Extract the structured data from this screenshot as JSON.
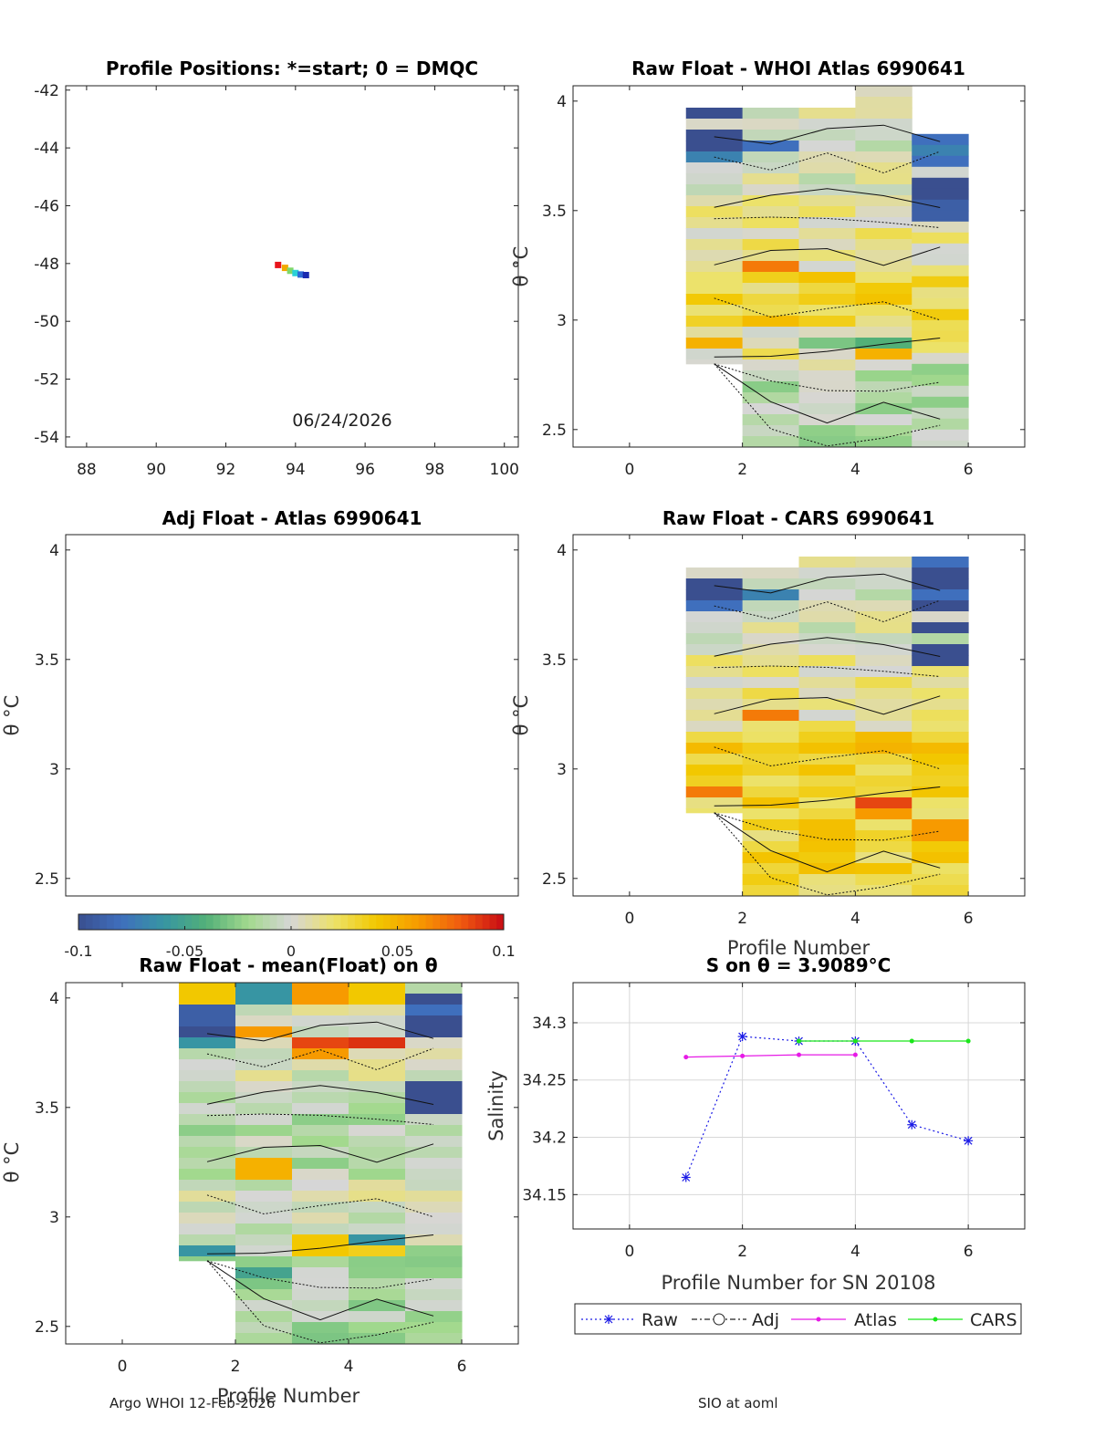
{
  "footer": {
    "left": "Argo WHOI 12-Feb-2026",
    "right": "SIO at aoml"
  },
  "colorbar": {
    "ticks": [
      "-0.1",
      "-0.05",
      "0",
      "0.05",
      "0.1"
    ],
    "range": [
      -0.1,
      0.1
    ],
    "colors": [
      "#3a4f8f",
      "#3f6fbd",
      "#3795a3",
      "#52b078",
      "#a3d98e",
      "#d6d6d6",
      "#ece26a",
      "#f2c800",
      "#f79a00",
      "#f05a10",
      "#c80a14"
    ]
  },
  "chart_data": [
    {
      "id": "positions",
      "type": "scatter",
      "title": "Profile Positions: *=start; 0 = DMQC",
      "xlabel": "",
      "ylabel": "",
      "xlim": [
        87.4,
        100.4
      ],
      "ylim": [
        -54.35,
        -41.85
      ],
      "xticks": [
        "88",
        "90",
        "92",
        "94",
        "96",
        "98",
        "100"
      ],
      "yticks": [
        "-42",
        "-44",
        "-46",
        "-48",
        "-50",
        "-52",
        "-54"
      ],
      "annotation": "06/24/2026",
      "points": [
        {
          "lon": 93.5,
          "lat": -48.05,
          "color": "#e8141c"
        },
        {
          "lon": 93.7,
          "lat": -48.15,
          "color": "#f2a900"
        },
        {
          "lon": 93.85,
          "lat": -48.25,
          "color": "#7fd86a"
        },
        {
          "lon": 94.0,
          "lat": -48.33,
          "color": "#2ad0d8"
        },
        {
          "lon": 94.15,
          "lat": -48.38,
          "color": "#2c6ad6"
        },
        {
          "lon": 94.3,
          "lat": -48.4,
          "color": "#1a2ab0"
        }
      ]
    },
    {
      "id": "raw-whoi",
      "type": "heatmap",
      "title": "Raw Float - WHOI Atlas  6990641",
      "xlabel": "",
      "ylabel": "θ °C",
      "xlim": [
        -1,
        7
      ],
      "ylim": [
        2.42,
        4.07
      ],
      "xticks": [
        "0",
        "2",
        "4",
        "6"
      ],
      "yticks": [
        "2.5",
        "3",
        "3.5",
        "4"
      ],
      "columns": [
        {
          "x": 1,
          "top": 3.97,
          "bottom": 2.8
        },
        {
          "x": 2,
          "top": 3.97,
          "bottom": 2.42
        },
        {
          "x": 3,
          "top": 3.97,
          "bottom": 2.42
        },
        {
          "x": 4,
          "top": 4.07,
          "bottom": 2.42
        },
        {
          "x": 5,
          "top": 3.85,
          "bottom": 2.42
        }
      ],
      "features": [
        {
          "col": 1,
          "t": 3.94,
          "v": -0.1
        },
        {
          "col": 1,
          "t": 3.84,
          "v": -0.1
        },
        {
          "col": 1,
          "t": 3.79,
          "v": -0.1
        },
        {
          "col": 1,
          "t": 3.74,
          "v": -0.07
        },
        {
          "col": 2,
          "t": 3.79,
          "v": -0.08
        },
        {
          "col": 5,
          "t": 3.82,
          "v": -0.08
        },
        {
          "col": 5,
          "t": 3.77,
          "v": -0.07
        },
        {
          "col": 5,
          "t": 3.72,
          "v": -0.08
        },
        {
          "col": 5,
          "t": 3.62,
          "v": -0.1
        },
        {
          "col": 5,
          "t": 3.55,
          "v": -0.1
        },
        {
          "col": 5,
          "t": 3.5,
          "v": -0.09
        },
        {
          "col": 2,
          "t": 3.23,
          "v": 0.07
        },
        {
          "col": 2,
          "t": 2.99,
          "v": 0.045
        },
        {
          "col": 1,
          "t": 2.9,
          "v": 0.05
        },
        {
          "col": 4,
          "t": 2.85,
          "v": 0.05
        },
        {
          "col": 4,
          "t": 2.88,
          "v": -0.04
        },
        {
          "col": 3,
          "t": 2.9,
          "v": -0.03
        }
      ],
      "baseline": [
        {
          "from": 3.97,
          "to": 3.6,
          "v": 0.0
        },
        {
          "from": 3.6,
          "to": 3.25,
          "v": 0.012
        },
        {
          "from": 3.25,
          "to": 3.0,
          "v": 0.028
        },
        {
          "from": 3.0,
          "to": 2.8,
          "v": 0.012
        },
        {
          "from": 2.8,
          "to": 2.42,
          "v": -0.012
        }
      ]
    },
    {
      "id": "adj-atlas",
      "type": "heatmap",
      "title": "Adj Float - Atlas  6990641",
      "xlabel": "",
      "ylabel": "θ °C",
      "xlim": [
        -1,
        7
      ],
      "ylim": [
        2.42,
        4.07
      ],
      "xticks": [],
      "yticks": [
        "2.5",
        "3",
        "3.5",
        "4"
      ],
      "columns": [],
      "features": [],
      "baseline": []
    },
    {
      "id": "raw-cars",
      "type": "heatmap",
      "title": "Raw Float - CARS  6990641",
      "xlabel": "Profile Number",
      "ylabel": "θ °C",
      "xlim": [
        -1,
        7
      ],
      "ylim": [
        2.42,
        4.07
      ],
      "xticks": [
        "0",
        "2",
        "4",
        "6"
      ],
      "yticks": [
        "2.5",
        "3",
        "3.5",
        "4"
      ],
      "columns": [
        {
          "x": 1,
          "top": 3.92,
          "bottom": 2.8
        },
        {
          "x": 2,
          "top": 3.92,
          "bottom": 2.42
        },
        {
          "x": 3,
          "top": 3.97,
          "bottom": 2.42
        },
        {
          "x": 4,
          "top": 3.97,
          "bottom": 2.42
        },
        {
          "x": 5,
          "top": 3.97,
          "bottom": 2.42
        }
      ],
      "features": [
        {
          "col": 1,
          "t": 3.86,
          "v": -0.1
        },
        {
          "col": 1,
          "t": 3.8,
          "v": -0.1
        },
        {
          "col": 1,
          "t": 3.74,
          "v": -0.08
        },
        {
          "col": 2,
          "t": 3.79,
          "v": -0.07
        },
        {
          "col": 5,
          "t": 3.94,
          "v": -0.08
        },
        {
          "col": 5,
          "t": 3.89,
          "v": -0.1
        },
        {
          "col": 5,
          "t": 3.84,
          "v": -0.1
        },
        {
          "col": 5,
          "t": 3.79,
          "v": -0.08
        },
        {
          "col": 5,
          "t": 3.74,
          "v": -0.1
        },
        {
          "col": 5,
          "t": 3.64,
          "v": -0.1
        },
        {
          "col": 5,
          "t": 3.55,
          "v": -0.1
        },
        {
          "col": 5,
          "t": 3.5,
          "v": -0.1
        },
        {
          "col": 2,
          "t": 3.23,
          "v": 0.07
        },
        {
          "col": 1,
          "t": 2.9,
          "v": 0.07
        },
        {
          "col": 4,
          "t": 2.85,
          "v": 0.085
        },
        {
          "col": 4,
          "t": 2.8,
          "v": 0.06
        },
        {
          "col": 5,
          "t": 2.75,
          "v": 0.06
        },
        {
          "col": 5,
          "t": 2.7,
          "v": 0.06
        }
      ],
      "baseline": [
        {
          "from": 3.97,
          "to": 3.55,
          "v": 0.0
        },
        {
          "from": 3.55,
          "to": 3.2,
          "v": 0.012
        },
        {
          "from": 3.2,
          "to": 2.9,
          "v": 0.035
        },
        {
          "from": 2.9,
          "to": 2.42,
          "v": 0.03
        }
      ]
    },
    {
      "id": "raw-mean",
      "type": "heatmap",
      "title": "Raw Float - mean(Float) on θ",
      "xlabel": "Profile Number",
      "ylabel": "θ °C",
      "xlim": [
        -1,
        7
      ],
      "ylim": [
        2.42,
        4.07
      ],
      "xticks": [
        "0",
        "2",
        "4",
        "6"
      ],
      "yticks": [
        "2.5",
        "3",
        "3.5",
        "4"
      ],
      "columns": [
        {
          "x": 1,
          "top": 4.07,
          "bottom": 2.8
        },
        {
          "x": 2,
          "top": 4.07,
          "bottom": 2.42
        },
        {
          "x": 3,
          "top": 4.07,
          "bottom": 2.42
        },
        {
          "x": 4,
          "top": 4.07,
          "bottom": 2.42
        },
        {
          "x": 5,
          "top": 4.07,
          "bottom": 2.42
        }
      ],
      "features": [
        {
          "col": 1,
          "t": 4.02,
          "v": 0.04
        },
        {
          "col": 2,
          "t": 4.02,
          "v": -0.06
        },
        {
          "col": 3,
          "t": 4.02,
          "v": 0.06
        },
        {
          "col": 4,
          "t": 4.02,
          "v": 0.04
        },
        {
          "col": 1,
          "t": 3.92,
          "v": -0.09
        },
        {
          "col": 1,
          "t": 3.84,
          "v": -0.1
        },
        {
          "col": 1,
          "t": 3.79,
          "v": -0.06
        },
        {
          "col": 2,
          "t": 3.84,
          "v": 0.06
        },
        {
          "col": 3,
          "t": 3.79,
          "v": 0.085
        },
        {
          "col": 4,
          "t": 3.79,
          "v": 0.09
        },
        {
          "col": 3,
          "t": 3.74,
          "v": 0.06
        },
        {
          "col": 5,
          "t": 3.97,
          "v": -0.1
        },
        {
          "col": 5,
          "t": 3.92,
          "v": -0.08
        },
        {
          "col": 5,
          "t": 3.87,
          "v": -0.1
        },
        {
          "col": 5,
          "t": 3.6,
          "v": -0.1
        },
        {
          "col": 5,
          "t": 3.55,
          "v": -0.1
        },
        {
          "col": 5,
          "t": 3.5,
          "v": -0.1
        },
        {
          "col": 2,
          "t": 3.22,
          "v": 0.05
        },
        {
          "col": 3,
          "t": 2.87,
          "v": 0.04
        },
        {
          "col": 4,
          "t": 2.89,
          "v": -0.06
        },
        {
          "col": 4,
          "t": 2.84,
          "v": 0.035
        },
        {
          "col": 1,
          "t": 2.84,
          "v": -0.06
        },
        {
          "col": 2,
          "t": 2.75,
          "v": -0.05
        }
      ],
      "baseline": [
        {
          "from": 4.07,
          "to": 3.6,
          "v": 0.0
        },
        {
          "from": 3.6,
          "to": 3.2,
          "v": -0.012
        },
        {
          "from": 3.2,
          "to": 2.9,
          "v": 0.0
        },
        {
          "from": 2.9,
          "to": 2.42,
          "v": -0.015
        }
      ]
    },
    {
      "id": "salinity",
      "type": "line",
      "title": "S on θ = 3.9089°C",
      "xlabel": "Profile Number for SN 20108",
      "ylabel": "Salinity",
      "xlim": [
        -1,
        7
      ],
      "ylim": [
        34.12,
        34.335
      ],
      "xticks": [
        "0",
        "2",
        "4",
        "6"
      ],
      "yticks": [
        "34.15",
        "34.2",
        "34.25",
        "34.3"
      ],
      "series": [
        {
          "name": "Raw",
          "color": "#1a1ae6",
          "x": [
            1,
            2,
            3,
            4,
            5,
            6
          ],
          "values": [
            34.165,
            34.288,
            34.284,
            34.284,
            34.211,
            34.197
          ]
        },
        {
          "name": "Adj",
          "color": "#222222",
          "x": [],
          "values": []
        },
        {
          "name": "Atlas",
          "color": "#e61ae6",
          "x": [
            1,
            2,
            3,
            4
          ],
          "values": [
            34.27,
            34.271,
            34.272,
            34.272
          ]
        },
        {
          "name": "CARS",
          "color": "#1ae61a",
          "x": [
            3,
            4,
            5,
            6
          ],
          "values": [
            34.284,
            34.284,
            34.284,
            34.284
          ]
        }
      ]
    }
  ]
}
